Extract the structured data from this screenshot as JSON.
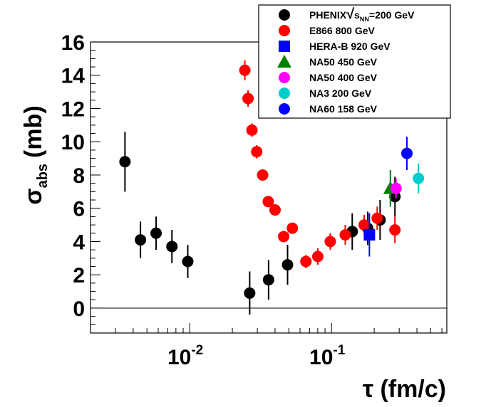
{
  "chart_data": {
    "type": "scatter",
    "title": "",
    "xlabel": "τ (fm/c)",
    "ylabel": "σabs (mb)",
    "ylabel_main": "σ",
    "ylabel_sub": "abs",
    "ylabel_unit": "(mb)",
    "x_scale": "log",
    "xlim": [
      0.002,
      0.65
    ],
    "ylim": [
      -1.5,
      16
    ],
    "x_tick_labels": [
      {
        "value": 0.01,
        "base": "10",
        "exp": "-2"
      },
      {
        "value": 0.1,
        "base": "10",
        "exp": "-1"
      }
    ],
    "y_ticks": [
      0,
      2,
      4,
      6,
      8,
      10,
      12,
      14,
      16
    ],
    "grid": false,
    "zero_line": true,
    "legend_position": "top-right",
    "series": [
      {
        "name": "PHENIX√sNN=200 GeV",
        "legend_parts": {
          "pre": "PHENIX",
          "root": "√",
          "s": "s",
          "sub": "NN",
          "post": "=200 GeV"
        },
        "marker": "circle",
        "color": "#000000",
        "points": [
          {
            "x": 0.0035,
            "y": 8.8,
            "err": 1.8
          },
          {
            "x": 0.0045,
            "y": 4.1,
            "err": 1.1
          },
          {
            "x": 0.0058,
            "y": 4.5,
            "err": 1.0
          },
          {
            "x": 0.0075,
            "y": 3.7,
            "err": 1.0
          },
          {
            "x": 0.0097,
            "y": 2.8,
            "err": 1.0
          },
          {
            "x": 0.0265,
            "y": 0.9,
            "err": 1.3
          },
          {
            "x": 0.036,
            "y": 1.7,
            "err": 1.2
          },
          {
            "x": 0.049,
            "y": 2.6,
            "err": 1.2
          },
          {
            "x": 0.14,
            "y": 4.6,
            "err": 1.1
          },
          {
            "x": 0.18,
            "y": 4.8,
            "err": 1.0
          },
          {
            "x": 0.22,
            "y": 5.3,
            "err": 1.2
          },
          {
            "x": 0.28,
            "y": 6.7,
            "err": 1.2
          }
        ]
      },
      {
        "name": "E866 800 GeV",
        "marker": "circle",
        "color": "#ff0000",
        "points": [
          {
            "x": 0.0245,
            "y": 14.3,
            "err": 0.6
          },
          {
            "x": 0.0258,
            "y": 12.6,
            "err": 0.5
          },
          {
            "x": 0.0275,
            "y": 10.7,
            "err": 0.4
          },
          {
            "x": 0.0297,
            "y": 9.4,
            "err": 0.4
          },
          {
            "x": 0.0327,
            "y": 8.0,
            "err": 0.3
          },
          {
            "x": 0.0358,
            "y": 6.4,
            "err": 0.3
          },
          {
            "x": 0.04,
            "y": 5.9,
            "err": 0.3
          },
          {
            "x": 0.046,
            "y": 4.3,
            "err": 0.3
          },
          {
            "x": 0.053,
            "y": 4.8,
            "err": 0.3
          },
          {
            "x": 0.066,
            "y": 2.8,
            "err": 0.4
          },
          {
            "x": 0.08,
            "y": 3.1,
            "err": 0.5
          },
          {
            "x": 0.098,
            "y": 4.0,
            "err": 0.5
          },
          {
            "x": 0.125,
            "y": 4.4,
            "err": 0.6
          },
          {
            "x": 0.17,
            "y": 5.0,
            "err": 0.6
          },
          {
            "x": 0.21,
            "y": 5.4,
            "err": 0.7
          },
          {
            "x": 0.28,
            "y": 4.7,
            "err": 0.8
          }
        ]
      },
      {
        "name": "HERA-B 920 GeV",
        "marker": "square",
        "color": "#0000ff",
        "points": [
          {
            "x": 0.185,
            "y": 4.4,
            "err": 1.3
          }
        ]
      },
      {
        "name": "NA50 450 GeV",
        "marker": "triangle",
        "color": "#008000",
        "points": [
          {
            "x": 0.26,
            "y": 7.2,
            "err": 1.1
          }
        ]
      },
      {
        "name": "NA50 400 GeV",
        "marker": "circle",
        "color": "#ff00ff",
        "points": [
          {
            "x": 0.285,
            "y": 7.2,
            "err": 0.6
          }
        ]
      },
      {
        "name": "NA3 200 GeV",
        "marker": "circle",
        "color": "#00cccc",
        "points": [
          {
            "x": 0.41,
            "y": 7.8,
            "err": 0.9
          }
        ]
      },
      {
        "name": "NA60 158 GeV",
        "marker": "circle",
        "color": "#0000ff",
        "points": [
          {
            "x": 0.34,
            "y": 9.3,
            "err": 1.0
          }
        ]
      }
    ]
  }
}
